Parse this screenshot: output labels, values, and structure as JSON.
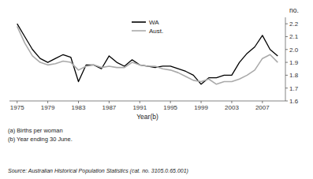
{
  "chart_data": {
    "type": "line",
    "x_label": "Year(b)",
    "y_label": "no.",
    "x": [
      1975,
      1976,
      1977,
      1978,
      1979,
      1980,
      1981,
      1982,
      1983,
      1984,
      1985,
      1986,
      1987,
      1988,
      1989,
      1990,
      1991,
      1992,
      1993,
      1994,
      1995,
      1996,
      1997,
      1998,
      1999,
      2000,
      2001,
      2002,
      2003,
      2004,
      2005,
      2006,
      2007,
      2008,
      2009
    ],
    "series": [
      {
        "name": "WA",
        "color": "#000000",
        "values": [
          2.2,
          2.1,
          2.0,
          1.93,
          1.9,
          1.93,
          1.96,
          1.94,
          1.75,
          1.88,
          1.88,
          1.85,
          1.95,
          1.9,
          1.87,
          1.92,
          1.88,
          1.87,
          1.86,
          1.87,
          1.87,
          1.85,
          1.83,
          1.8,
          1.73,
          1.78,
          1.78,
          1.8,
          1.8,
          1.9,
          1.97,
          2.02,
          2.11,
          2.0,
          1.95
        ]
      },
      {
        "name": "Aust.",
        "color": "#aaaaaa",
        "values": [
          2.18,
          2.05,
          1.95,
          1.9,
          1.88,
          1.89,
          1.91,
          1.9,
          1.84,
          1.87,
          1.88,
          1.86,
          1.87,
          1.86,
          1.86,
          1.9,
          1.88,
          1.87,
          1.87,
          1.85,
          1.84,
          1.82,
          1.79,
          1.76,
          1.75,
          1.77,
          1.73,
          1.75,
          1.75,
          1.77,
          1.8,
          1.84,
          1.93,
          1.96,
          1.9
        ]
      }
    ],
    "xlim": [
      1974,
      2010
    ],
    "xticks": [
      1975,
      1979,
      1983,
      1987,
      1991,
      1995,
      1999,
      2003,
      2007
    ],
    "ylim": [
      1.6,
      2.25
    ],
    "yticks": [
      1.6,
      1.7,
      1.8,
      1.9,
      {
        "value": 2.0,
        "label": "2.0"
      },
      2.1,
      2.2
    ],
    "grid": false,
    "legend": "top",
    "annotations": [
      "(a)  Births per woman",
      "(b)  Year ending 30 June.",
      "Source: Australian Historical Population Statistics (cat. no. 3105.0.65.001)"
    ]
  }
}
